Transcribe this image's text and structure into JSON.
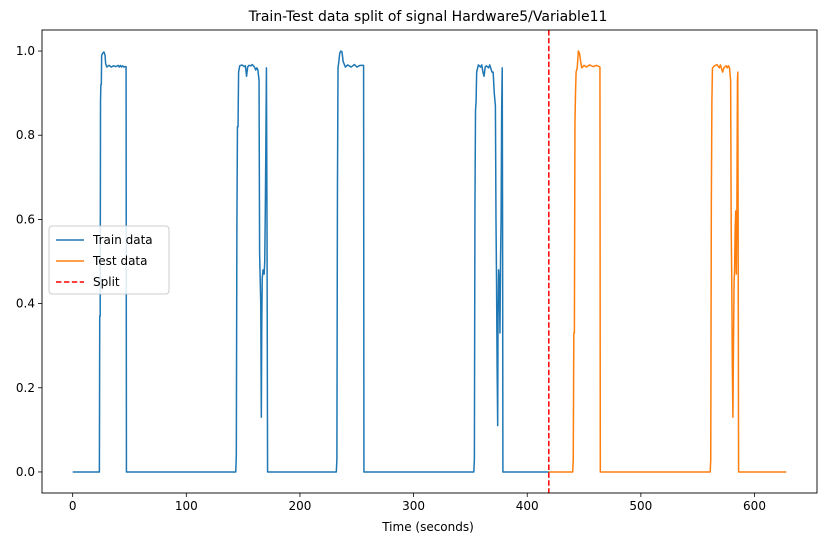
{
  "chart_data": {
    "type": "line",
    "title": "Train-Test data split of signal Hardware5/Variable11",
    "xlabel": "Time (seconds)",
    "ylabel": "",
    "xlim": [
      -27,
      655
    ],
    "ylim": [
      -0.05,
      1.05
    ],
    "xticks": [
      0,
      100,
      200,
      300,
      400,
      500,
      600
    ],
    "yticks": [
      0.0,
      0.2,
      0.4,
      0.6,
      0.8,
      1.0
    ],
    "grid": false,
    "legend_position": "center-left",
    "series": [
      {
        "name": "Train data",
        "color": "#1f77b4",
        "points": [
          [
            0,
            0
          ],
          [
            23.5,
            0
          ],
          [
            23.8,
            0.37
          ],
          [
            24.2,
            0.37
          ],
          [
            24.5,
            0.88
          ],
          [
            24.8,
            0.92
          ],
          [
            25.2,
            0.92
          ],
          [
            25.5,
            0.99
          ],
          [
            26.5,
            0.995
          ],
          [
            27.5,
            0.998
          ],
          [
            28.5,
            0.99
          ],
          [
            29,
            0.97
          ],
          [
            30,
            0.962
          ],
          [
            31,
            0.964
          ],
          [
            32,
            0.966
          ],
          [
            34,
            0.962
          ],
          [
            36,
            0.965
          ],
          [
            38,
            0.963
          ],
          [
            40,
            0.966
          ],
          [
            41,
            0.962
          ],
          [
            42,
            0.966
          ],
          [
            43,
            0.962
          ],
          [
            44,
            0.965
          ],
          [
            45,
            0.962
          ],
          [
            46,
            0.963
          ],
          [
            47,
            0.963
          ],
          [
            47.3,
            0
          ],
          [
            143.5,
            0
          ],
          [
            144,
            0.04
          ],
          [
            144.5,
            0.58
          ],
          [
            145,
            0.82
          ],
          [
            145.5,
            0.82
          ],
          [
            146,
            0.95
          ],
          [
            147,
            0.965
          ],
          [
            149,
            0.967
          ],
          [
            151,
            0.963
          ],
          [
            152,
            0.965
          ],
          [
            153,
            0.94
          ],
          [
            154,
            0.962
          ],
          [
            155,
            0.966
          ],
          [
            157,
            0.965
          ],
          [
            158,
            0.968
          ],
          [
            160,
            0.962
          ],
          [
            161,
            0.955
          ],
          [
            162,
            0.96
          ],
          [
            163,
            0.955
          ],
          [
            164,
            0.93
          ],
          [
            164.5,
            0.52
          ],
          [
            165,
            0.46
          ],
          [
            165.5,
            0.4
          ],
          [
            166,
            0.13
          ],
          [
            166.4,
            0.35
          ],
          [
            166.8,
            0.46
          ],
          [
            167.5,
            0.48
          ],
          [
            168.5,
            0.47
          ],
          [
            169,
            0.5
          ],
          [
            169.5,
            0.62
          ],
          [
            170,
            0.78
          ],
          [
            170.5,
            0.96
          ],
          [
            171,
            0.6
          ],
          [
            171.5,
            0
          ],
          [
            232,
            0
          ],
          [
            232.5,
            0.03
          ],
          [
            233,
            0.67
          ],
          [
            233.5,
            0.96
          ],
          [
            234,
            0.97
          ],
          [
            235,
            0.995
          ],
          [
            236,
            1.0
          ],
          [
            237,
            0.998
          ],
          [
            238,
            0.975
          ],
          [
            240,
            0.962
          ],
          [
            242,
            0.967
          ],
          [
            245,
            0.962
          ],
          [
            248,
            0.968
          ],
          [
            250,
            0.962
          ],
          [
            253,
            0.966
          ],
          [
            256,
            0.966
          ],
          [
            256.3,
            0
          ],
          [
            353,
            0
          ],
          [
            353.5,
            0.03
          ],
          [
            354,
            0.63
          ],
          [
            354.5,
            0.86
          ],
          [
            355,
            0.88
          ],
          [
            355.5,
            0.95
          ],
          [
            357,
            0.967
          ],
          [
            359,
            0.962
          ],
          [
            360,
            0.967
          ],
          [
            361,
            0.95
          ],
          [
            362,
            0.94
          ],
          [
            363,
            0.962
          ],
          [
            364,
            0.965
          ],
          [
            366,
            0.96
          ],
          [
            367,
            0.967
          ],
          [
            369,
            0.95
          ],
          [
            370,
            0.95
          ],
          [
            371,
            0.9
          ],
          [
            372,
            0.87
          ],
          [
            372.5,
            0.6
          ],
          [
            373,
            0.45
          ],
          [
            373.5,
            0.25
          ],
          [
            374,
            0.11
          ],
          [
            374.3,
            0.36
          ],
          [
            374.8,
            0.48
          ],
          [
            375.5,
            0.45
          ],
          [
            376,
            0.33
          ],
          [
            376.5,
            0.5
          ],
          [
            377,
            0.6
          ],
          [
            377.5,
            0.86
          ],
          [
            378,
            0.96
          ],
          [
            378.3,
            0.6
          ],
          [
            378.6,
            0
          ],
          [
            419,
            0
          ]
        ]
      },
      {
        "name": "Test data",
        "color": "#ff7f0e",
        "points": [
          [
            419,
            0
          ],
          [
            440,
            0
          ],
          [
            440.5,
            0.03
          ],
          [
            441,
            0.33
          ],
          [
            441.5,
            0.33
          ],
          [
            442,
            0.83
          ],
          [
            442.5,
            0.9
          ],
          [
            443,
            0.95
          ],
          [
            444,
            0.96
          ],
          [
            445,
            1.0
          ],
          [
            446,
            0.995
          ],
          [
            447,
            0.975
          ],
          [
            448,
            0.96
          ],
          [
            450,
            0.966
          ],
          [
            452,
            0.962
          ],
          [
            455,
            0.967
          ],
          [
            458,
            0.963
          ],
          [
            461,
            0.966
          ],
          [
            464,
            0.962
          ],
          [
            464.3,
            0
          ],
          [
            561,
            0
          ],
          [
            561.5,
            0.03
          ],
          [
            562,
            0.63
          ],
          [
            562.5,
            0.88
          ],
          [
            563,
            0.96
          ],
          [
            565,
            0.965
          ],
          [
            567,
            0.968
          ],
          [
            569,
            0.96
          ],
          [
            570,
            0.967
          ],
          [
            572,
            0.95
          ],
          [
            573,
            0.96
          ],
          [
            575,
            0.965
          ],
          [
            576,
            0.96
          ],
          [
            577,
            0.965
          ],
          [
            578,
            0.96
          ],
          [
            579,
            0.93
          ],
          [
            579.5,
            0.58
          ],
          [
            580,
            0.45
          ],
          [
            580.5,
            0.25
          ],
          [
            581,
            0.13
          ],
          [
            581.5,
            0.3
          ],
          [
            582,
            0.45
          ],
          [
            582.5,
            0.48
          ],
          [
            583,
            0.58
          ],
          [
            583.5,
            0.62
          ],
          [
            584,
            0.47
          ],
          [
            584.5,
            0.62
          ],
          [
            585,
            0.93
          ],
          [
            585.3,
            0.95
          ],
          [
            585.6,
            0.6
          ],
          [
            586,
            0
          ],
          [
            628,
            0
          ]
        ]
      }
    ],
    "split": {
      "name": "Split",
      "x": 419,
      "color": "#ff0000"
    }
  }
}
